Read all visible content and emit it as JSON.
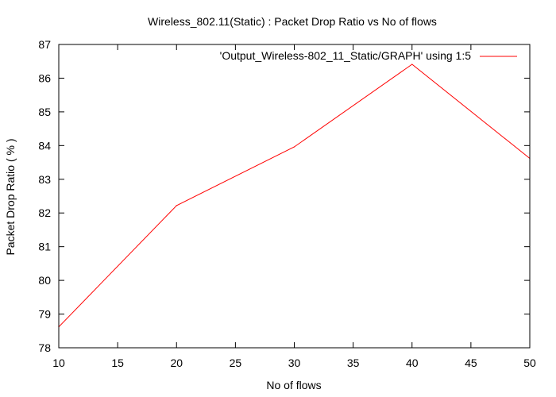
{
  "chart_data": {
    "type": "line",
    "title": "Wireless_802.11(Static) : Packet Drop Ratio vs No of flows",
    "xlabel": "No of flows",
    "ylabel": "Packet Drop Ratio ( % )",
    "xlim": [
      10,
      50
    ],
    "ylim": [
      78,
      87
    ],
    "xticks": [
      10,
      15,
      20,
      25,
      30,
      35,
      40,
      45,
      50
    ],
    "yticks": [
      78,
      79,
      80,
      81,
      82,
      83,
      84,
      85,
      86,
      87
    ],
    "grid": false,
    "legend_position": "top-right",
    "series": [
      {
        "name": "'Output_Wireless-802_11_Static/GRAPH' using 1:5",
        "color": "#ff0000",
        "x": [
          10,
          20,
          30,
          40,
          50
        ],
        "y": [
          78.62,
          82.22,
          83.96,
          86.41,
          83.62
        ]
      }
    ]
  }
}
